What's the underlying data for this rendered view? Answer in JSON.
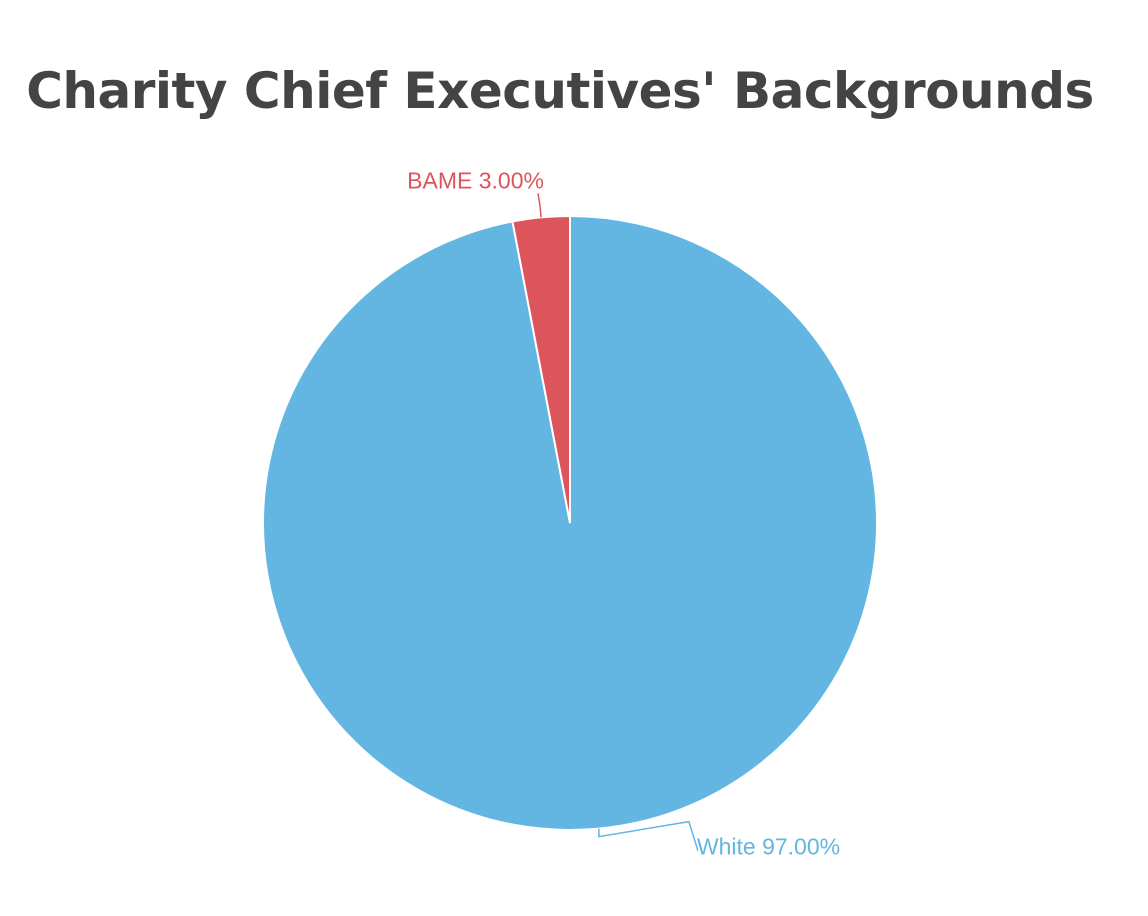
{
  "chart_data": {
    "type": "pie",
    "title": "Charity Chief Executives' Backgrounds",
    "slices": [
      {
        "label": "White",
        "value": 97.0,
        "display": "White 97.00%",
        "color": "#63b6e2"
      },
      {
        "label": "BAME",
        "value": 3.0,
        "display": "BAME 3.00%",
        "color": "#dc555c"
      }
    ]
  }
}
